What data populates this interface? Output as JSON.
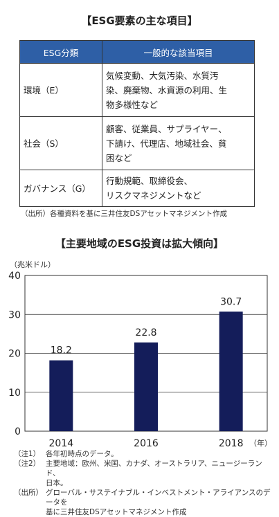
{
  "table_title": "【ESG要素の主な項目】",
  "table": {
    "headers": [
      "ESG分類",
      "一般的な該当項目"
    ],
    "rows": [
      {
        "category": "環境（E）",
        "items": [
          "気候変動、大気汚染、水質汚",
          "染、廃棄物、水資源の利用、生",
          "物多様性など"
        ]
      },
      {
        "category": "社会（S）",
        "items": [
          "顧客、従業員、サプライヤー、",
          "下請け、代理店、地域社会、貧",
          "困など"
        ]
      },
      {
        "category": "ガバナンス（G）",
        "items": [
          "行動規範、取締役会、",
          "リスクマネジメントなど"
        ]
      }
    ],
    "source": "（出所）各種資料を基に三井住友DSアセットマネジメント作成"
  },
  "chart_data": {
    "type": "bar",
    "title": "【主要地域のESG投資は拡大傾向】",
    "ylabel": "（兆米ドル）",
    "xlabel": "（年）",
    "categories": [
      "2014",
      "2016",
      "2018"
    ],
    "values": [
      18.2,
      22.8,
      30.7
    ],
    "data_labels": [
      "18.2",
      "22.8",
      "30.7"
    ],
    "yticks": [
      "0",
      "10",
      "20",
      "30",
      "40"
    ],
    "ylim": [
      0,
      40
    ],
    "grid": true,
    "bar_color": "#141d5a"
  },
  "notes": [
    {
      "label": "（注1）",
      "lines": [
        "各年初時点のデータ。"
      ]
    },
    {
      "label": "（注2）",
      "lines": [
        "主要地域：欧州、米国、カナダ、オーストラリア、ニュージーランド、",
        "日本。"
      ]
    },
    {
      "label": "（出所）",
      "lines": [
        "グローバル・サステイナブル・インベストメント・アライアンスのデータを",
        "基に三井住友DSアセットマネジメント作成"
      ]
    }
  ]
}
